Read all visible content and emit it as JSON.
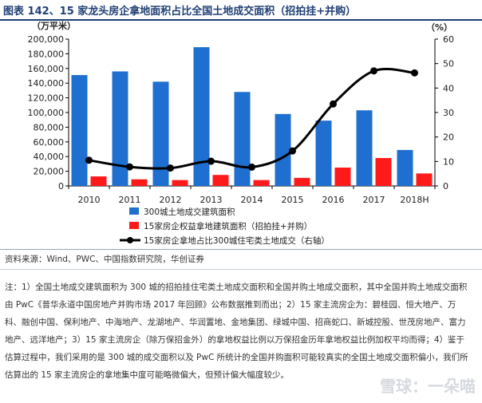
{
  "header": {
    "title": "图表 142、15 家龙头房企拿地面积占比全国土地成交面积（招拍挂+并购）"
  },
  "chart_data": {
    "type": "bar",
    "categories": [
      "2010",
      "2011",
      "2012",
      "2013",
      "2014",
      "2015",
      "2016",
      "2017",
      "2018H"
    ],
    "left_axis": {
      "unit": "（万平米）",
      "ylim": [
        0,
        200000
      ],
      "ticks": [
        "0",
        "20,000",
        "40,000",
        "60,000",
        "80,000",
        "100,000",
        "120,000",
        "140,000",
        "160,000",
        "180,000",
        "200,000"
      ]
    },
    "right_axis": {
      "unit": "（%）",
      "ylim": [
        0,
        60
      ],
      "ticks": [
        "0",
        "10",
        "20",
        "30",
        "40",
        "50",
        "60"
      ]
    },
    "series": [
      {
        "name": "300城土地成交建筑面积",
        "kind": "bar",
        "axis": "left",
        "color": "#1f6fd1",
        "values": [
          151000,
          156000,
          142000,
          189000,
          128000,
          98000,
          89000,
          103000,
          49000
        ]
      },
      {
        "name": "15家房企权益拿地建筑面积（招拍挂+并购）",
        "kind": "bar",
        "axis": "left",
        "color": "#ff1a1a",
        "values": [
          13000,
          9000,
          8000,
          15000,
          8000,
          11000,
          25000,
          38000,
          17000
        ]
      },
      {
        "name": "15家房企拿地占比300城住宅类土地成交（右轴）",
        "kind": "line",
        "axis": "right",
        "color": "#000000",
        "values": [
          10.5,
          7.8,
          7.3,
          10.1,
          7.7,
          14.3,
          33.5,
          47.0,
          46.2
        ]
      }
    ],
    "grid": false,
    "legend_position": "bottom-left"
  },
  "footer": {
    "source": "资料来源：Wind、PWC、中国指数研究院，华创证券",
    "note": "注：1）全国土地成交建筑面积为 300 城的招拍挂住宅类土地成交面积和全国并购土地成交面积，其中全国并购土地成交面积由 PwC《普华永道中国房地产并购市场 2017 年回顾》公布数据推到而出；2）15 家主流房企为：碧桂园、恒大地产、万科、融创中国、保利地产、中海地产、龙湖地产、华润置地、金地集团、绿城中国、招商蛇口、新城控股、世茂房地产、富力地产、远洋地产；3）15 家主流房企（除万保招金外）的拿地权益比例以万保招金历年拿地权益比例加权平均而得；4）鉴于估算过程中，我们采用的是 300 城的成交面积以及 PwC 所统计的全国并购面积可能较真实的全国土地成交面积偏小，我们所估算出的 15 家主流房企的拿地集中度可能略微偏大，但预计偏大幅度较少。",
    "watermark": "雪球：一朵喵"
  }
}
